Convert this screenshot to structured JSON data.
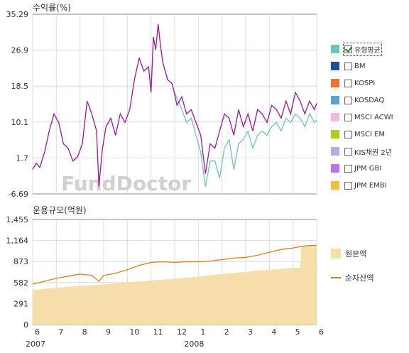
{
  "colors": {
    "fund_line": "#a0149a",
    "avg_line": "#6cc5b8",
    "principal_fill": "#f5deaa",
    "net_asset_line": "#d4801e",
    "grid": "#dcdcdc",
    "axis": "#888888",
    "watermark": "#d0d0d0"
  },
  "watermark": "FundDoctor",
  "legend": {
    "items": [
      {
        "label": "유형평균",
        "color": "#6cc5b8",
        "checked": true
      },
      {
        "label": "BM",
        "color": "#1f4fa0",
        "checked": false
      },
      {
        "label": "KOSPI",
        "color": "#f07030",
        "checked": false
      },
      {
        "label": "KOSDAQ",
        "color": "#5aa0d8",
        "checked": false
      },
      {
        "label": "MSCI ACWI",
        "color": "#f4b8dc",
        "checked": false
      },
      {
        "label": "MSCI EM",
        "color": "#a8cc20",
        "checked": false
      },
      {
        "label": "KIS채권 2년",
        "color": "#b8a8e0",
        "checked": false
      },
      {
        "label": "JPM GBI",
        "color": "#c070e8",
        "checked": false
      },
      {
        "label": "JPM EMBI",
        "color": "#f8b840",
        "checked": false
      }
    ]
  },
  "legend2": {
    "items": [
      {
        "label": "원본액",
        "color": "#f5deaa",
        "kind": "area"
      },
      {
        "label": "순자산액",
        "color": "#d4801e",
        "kind": "line"
      }
    ]
  },
  "x_axis": {
    "months": [
      "6",
      "7",
      "8",
      "9",
      "10",
      "11",
      "12",
      "1",
      "2",
      "3",
      "4",
      "5",
      "6"
    ],
    "years": [
      "2007",
      "2008"
    ]
  },
  "chart_data": [
    {
      "type": "line",
      "title": "수익률(%)",
      "ylabel": "수익률(%)",
      "yticks": [
        "35.29",
        "26.9",
        "18.5",
        "10.1",
        "1.7",
        "-6.69"
      ],
      "ylim": [
        -6.69,
        35.29
      ],
      "x_months": [
        "6",
        "7",
        "8",
        "9",
        "10",
        "11",
        "12",
        "1",
        "2",
        "3",
        "4",
        "5",
        "6"
      ],
      "series": [
        {
          "name": "",
          "color": "#a0149a",
          "x": [
            0.0,
            0.15,
            0.3,
            0.5,
            0.7,
            0.9,
            1.1,
            1.3,
            1.5,
            1.7,
            1.9,
            2.1,
            2.3,
            2.5,
            2.7,
            2.8,
            2.95,
            3.1,
            3.3,
            3.5,
            3.7,
            3.9,
            4.1,
            4.3,
            4.5,
            4.7,
            4.9,
            5.0,
            5.1,
            5.2,
            5.3,
            5.4,
            5.5,
            5.7,
            5.9,
            6.1,
            6.3,
            6.5,
            6.7,
            6.9,
            7.1,
            7.3,
            7.5,
            7.7,
            7.9,
            8.1,
            8.3,
            8.5,
            8.7,
            8.9,
            9.1,
            9.3,
            9.5,
            9.7,
            9.9,
            10.1,
            10.3,
            10.5,
            10.7,
            10.9,
            11.1,
            11.3,
            11.5,
            11.7,
            11.9,
            12.0
          ],
          "values": [
            -1.0,
            0.5,
            -0.5,
            3.0,
            8.0,
            12.0,
            10.0,
            5.0,
            4.0,
            1.0,
            2.0,
            5.0,
            15.0,
            12.0,
            8.0,
            -5.0,
            4.0,
            9.0,
            11.0,
            7.0,
            12.0,
            10.0,
            13.0,
            20.0,
            25.0,
            22.0,
            23.0,
            17.0,
            30.0,
            27.0,
            33.0,
            28.0,
            24.0,
            20.0,
            19.0,
            14.0,
            16.0,
            12.0,
            13.0,
            10.0,
            7.0,
            -2.0,
            5.0,
            4.0,
            8.0,
            12.0,
            11.0,
            7.0,
            13.0,
            9.0,
            12.0,
            8.0,
            13.0,
            12.0,
            10.0,
            14.0,
            13.0,
            11.0,
            15.0,
            12.0,
            17.0,
            15.0,
            12.0,
            15.0,
            13.0,
            14.5
          ]
        },
        {
          "name": "유형평균",
          "color": "#6cc5b8",
          "x": [
            6.0,
            6.3,
            6.5,
            6.7,
            6.9,
            7.1,
            7.3,
            7.5,
            7.7,
            7.9,
            8.1,
            8.3,
            8.5,
            8.7,
            8.9,
            9.1,
            9.3,
            9.5,
            9.7,
            9.9,
            10.1,
            10.3,
            10.5,
            10.7,
            10.9,
            11.1,
            11.3,
            11.5,
            11.7,
            11.9,
            12.0
          ],
          "values": [
            17.0,
            13.0,
            10.0,
            11.0,
            7.0,
            3.0,
            -5.0,
            1.0,
            1.0,
            -3.0,
            4.0,
            6.0,
            -1.0,
            5.0,
            6.0,
            8.0,
            4.0,
            7.0,
            8.0,
            7.0,
            9.0,
            10.0,
            8.0,
            11.0,
            10.0,
            12.0,
            11.0,
            9.0,
            12.0,
            10.0,
            10.5
          ]
        }
      ]
    },
    {
      "type": "area",
      "title": "운용규모(억원)",
      "ylabel": "운용규모(억원)",
      "yticks": [
        "1,455",
        "1,164",
        "873",
        "582",
        "291",
        "0"
      ],
      "ylim": [
        0,
        1455
      ],
      "x_months": [
        "6",
        "7",
        "8",
        "9",
        "10",
        "11",
        "12",
        "1",
        "2",
        "3",
        "4",
        "5",
        "6"
      ],
      "series": [
        {
          "name": "원본액",
          "color": "#f5deaa",
          "x": [
            0.0,
            1.0,
            2.0,
            3.0,
            4.0,
            5.0,
            6.0,
            7.0,
            8.0,
            9.0,
            10.0,
            11.3,
            11.35,
            12.0
          ],
          "values": [
            480,
            510,
            535,
            555,
            585,
            610,
            635,
            665,
            700,
            730,
            760,
            790,
            1080,
            1100
          ]
        },
        {
          "name": "순자산액",
          "color": "#d4801e",
          "x": [
            0.0,
            0.5,
            1.0,
            1.5,
            2.0,
            2.5,
            2.8,
            3.0,
            3.5,
            4.0,
            4.5,
            5.0,
            5.5,
            6.0,
            6.5,
            7.0,
            7.5,
            8.0,
            8.5,
            9.0,
            9.5,
            10.0,
            10.5,
            11.0,
            11.5,
            12.0
          ],
          "values": [
            560,
            600,
            640,
            670,
            700,
            680,
            600,
            680,
            710,
            760,
            820,
            860,
            870,
            860,
            870,
            870,
            880,
            900,
            920,
            930,
            960,
            1000,
            1040,
            1060,
            1090,
            1100
          ]
        }
      ]
    }
  ]
}
